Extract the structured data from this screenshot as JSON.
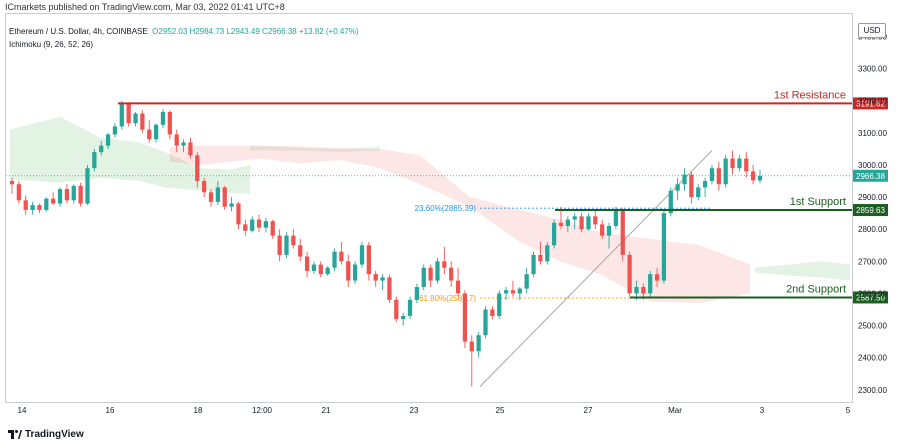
{
  "header": {
    "published_by": "ICmarkets published on TradingView.com, Mar 03, 2022 01:41 UTC+8"
  },
  "legend": {
    "symbol": "Ethereum / U.S. Dollar, 4h, COINBASE",
    "ohlc": "O2952.03 H2984.73 L2943.49 C2966.38 +13.82 (+0.47%)",
    "indicator": "Ichimoku (9, 26, 52, 26)"
  },
  "currency_button": "USD",
  "footer": {
    "brand": "TradingView",
    "logo_icon": "tradingview-logo-icon"
  },
  "colors": {
    "up": "#26a69a",
    "down": "#ef5350",
    "resistance": "#c62828",
    "support": "#1b5e20",
    "fib_236": "#2196f3",
    "fib_618": "#f39c12"
  },
  "chart_data": {
    "type": "candlestick",
    "y_ticks": [
      "3400.00",
      "3300.00",
      "3200.00",
      "3100.00",
      "3000.00",
      "2900.00",
      "2800.00",
      "2700.00",
      "2600.00",
      "2500.00",
      "2400.00",
      "2300.00"
    ],
    "x_ticks": [
      "14",
      "16",
      "18",
      "12:00",
      "21",
      "23",
      "25",
      "27",
      "Mar",
      "3",
      "5"
    ],
    "ylim": [
      2262,
      3470
    ],
    "levels": [
      {
        "name": "1st Resistance",
        "value": 3191.62,
        "label": "3191.62"
      },
      {
        "name": "1st Support",
        "value": 2859.63,
        "label": "2859.63"
      },
      {
        "name": "2nd Support",
        "value": 2587.5,
        "label": "2587.50"
      }
    ],
    "last_price": {
      "value": 2966.38,
      "label": "2966.38"
    },
    "fib": [
      {
        "text": "23.60%(2865.39)",
        "value": 2865.39
      },
      {
        "text": "61.80%(2585.7)",
        "value": 2585.7
      }
    ],
    "candles": [
      [
        2950,
        2960,
        2910,
        2940
      ],
      [
        2940,
        2950,
        2880,
        2890
      ],
      [
        2890,
        2905,
        2845,
        2860
      ],
      [
        2860,
        2885,
        2845,
        2875
      ],
      [
        2875,
        2880,
        2850,
        2860
      ],
      [
        2860,
        2900,
        2855,
        2895
      ],
      [
        2895,
        2915,
        2875,
        2880
      ],
      [
        2880,
        2930,
        2870,
        2925
      ],
      [
        2925,
        2940,
        2880,
        2890
      ],
      [
        2890,
        2940,
        2880,
        2935
      ],
      [
        2935,
        2945,
        2870,
        2880
      ],
      [
        2880,
        3000,
        2875,
        2990
      ],
      [
        2990,
        3050,
        2980,
        3040
      ],
      [
        3040,
        3075,
        3030,
        3060
      ],
      [
        3060,
        3100,
        3050,
        3095
      ],
      [
        3095,
        3130,
        3085,
        3120
      ],
      [
        3120,
        3200,
        3110,
        3190
      ],
      [
        3190,
        3195,
        3120,
        3130
      ],
      [
        3130,
        3165,
        3120,
        3160
      ],
      [
        3160,
        3170,
        3100,
        3110
      ],
      [
        3110,
        3140,
        3070,
        3080
      ],
      [
        3080,
        3130,
        3070,
        3125
      ],
      [
        3125,
        3175,
        3115,
        3165
      ],
      [
        3165,
        3170,
        3080,
        3095
      ],
      [
        3095,
        3110,
        3040,
        3060
      ],
      [
        3060,
        3080,
        3040,
        3070
      ],
      [
        3070,
        3085,
        3020,
        3030
      ],
      [
        3030,
        3040,
        2930,
        2950
      ],
      [
        2950,
        2960,
        2900,
        2915
      ],
      [
        2915,
        2925,
        2870,
        2885
      ],
      [
        2885,
        2950,
        2875,
        2930
      ],
      [
        2930,
        2935,
        2860,
        2870
      ],
      [
        2870,
        2900,
        2855,
        2880
      ],
      [
        2880,
        2885,
        2800,
        2815
      ],
      [
        2815,
        2830,
        2780,
        2795
      ],
      [
        2795,
        2840,
        2790,
        2830
      ],
      [
        2830,
        2845,
        2790,
        2805
      ],
      [
        2805,
        2835,
        2790,
        2825
      ],
      [
        2825,
        2830,
        2770,
        2780
      ],
      [
        2780,
        2800,
        2700,
        2720
      ],
      [
        2720,
        2790,
        2710,
        2780
      ],
      [
        2780,
        2800,
        2740,
        2750
      ],
      [
        2750,
        2770,
        2700,
        2715
      ],
      [
        2715,
        2730,
        2650,
        2670
      ],
      [
        2670,
        2700,
        2660,
        2690
      ],
      [
        2690,
        2700,
        2650,
        2660
      ],
      [
        2660,
        2685,
        2655,
        2680
      ],
      [
        2680,
        2740,
        2670,
        2730
      ],
      [
        2730,
        2760,
        2690,
        2700
      ],
      [
        2700,
        2720,
        2620,
        2640
      ],
      [
        2640,
        2700,
        2630,
        2690
      ],
      [
        2690,
        2760,
        2680,
        2750
      ],
      [
        2750,
        2760,
        2640,
        2660
      ],
      [
        2660,
        2670,
        2620,
        2640
      ],
      [
        2640,
        2660,
        2610,
        2650
      ],
      [
        2650,
        2660,
        2570,
        2580
      ],
      [
        2580,
        2590,
        2510,
        2520
      ],
      [
        2520,
        2540,
        2500,
        2530
      ],
      [
        2530,
        2590,
        2520,
        2580
      ],
      [
        2580,
        2630,
        2570,
        2620
      ],
      [
        2620,
        2690,
        2610,
        2680
      ],
      [
        2680,
        2690,
        2620,
        2640
      ],
      [
        2640,
        2710,
        2630,
        2700
      ],
      [
        2700,
        2745,
        2660,
        2680
      ],
      [
        2680,
        2700,
        2620,
        2640
      ],
      [
        2640,
        2680,
        2590,
        2600
      ],
      [
        2600,
        2610,
        2430,
        2450
      ],
      [
        2450,
        2470,
        2310,
        2420
      ],
      [
        2420,
        2480,
        2400,
        2470
      ],
      [
        2470,
        2560,
        2460,
        2550
      ],
      [
        2550,
        2560,
        2520,
        2530
      ],
      [
        2530,
        2610,
        2520,
        2600
      ],
      [
        2600,
        2620,
        2580,
        2610
      ],
      [
        2610,
        2640,
        2590,
        2600
      ],
      [
        2600,
        2620,
        2580,
        2615
      ],
      [
        2615,
        2680,
        2600,
        2660
      ],
      [
        2660,
        2730,
        2650,
        2720
      ],
      [
        2720,
        2760,
        2690,
        2700
      ],
      [
        2700,
        2760,
        2690,
        2750
      ],
      [
        2750,
        2830,
        2740,
        2820
      ],
      [
        2820,
        2870,
        2800,
        2810
      ],
      [
        2810,
        2840,
        2790,
        2830
      ],
      [
        2830,
        2850,
        2800,
        2840
      ],
      [
        2840,
        2850,
        2790,
        2800
      ],
      [
        2800,
        2850,
        2795,
        2840
      ],
      [
        2840,
        2860,
        2800,
        2815
      ],
      [
        2815,
        2830,
        2770,
        2780
      ],
      [
        2780,
        2820,
        2740,
        2810
      ],
      [
        2810,
        2870,
        2800,
        2860
      ],
      [
        2860,
        2865,
        2700,
        2720
      ],
      [
        2720,
        2730,
        2590,
        2600
      ],
      [
        2600,
        2640,
        2580,
        2620
      ],
      [
        2620,
        2630,
        2580,
        2600
      ],
      [
        2600,
        2670,
        2590,
        2660
      ],
      [
        2660,
        2680,
        2620,
        2640
      ],
      [
        2640,
        2860,
        2630,
        2850
      ],
      [
        2850,
        2930,
        2840,
        2920
      ],
      [
        2920,
        2960,
        2890,
        2940
      ],
      [
        2940,
        2990,
        2920,
        2970
      ],
      [
        2970,
        2980,
        2880,
        2900
      ],
      [
        2900,
        2940,
        2890,
        2930
      ],
      [
        2930,
        2960,
        2900,
        2950
      ],
      [
        2950,
        3000,
        2940,
        2990
      ],
      [
        2990,
        3010,
        2920,
        2940
      ],
      [
        2940,
        3030,
        2930,
        3020
      ],
      [
        3020,
        3045,
        2970,
        2990
      ],
      [
        2990,
        3030,
        2980,
        3020
      ],
      [
        3020,
        3040,
        2960,
        2980
      ],
      [
        2980,
        3000,
        2940,
        2952
      ],
      [
        2952,
        2985,
        2943,
        2966
      ]
    ]
  }
}
